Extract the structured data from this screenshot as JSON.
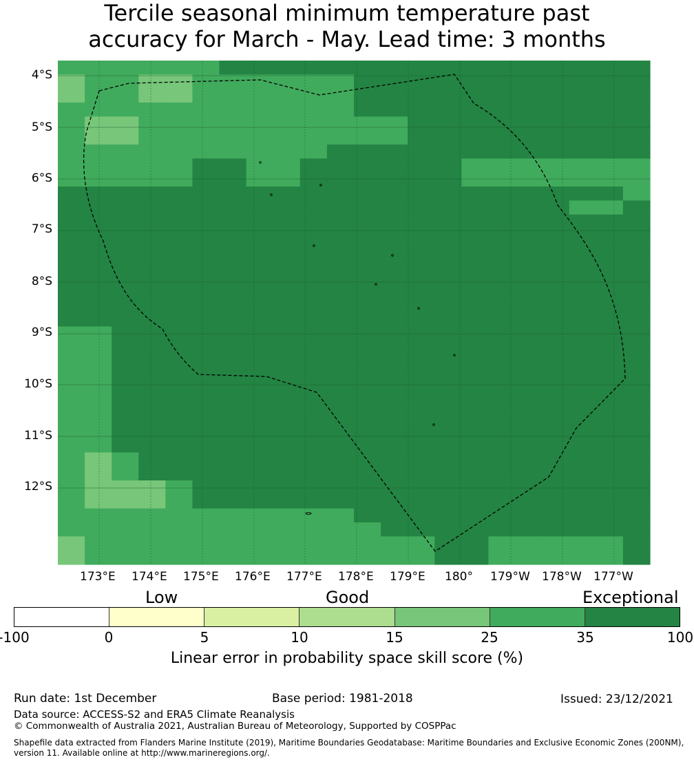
{
  "title": {
    "line1": "Tercile seasonal minimum temperature past",
    "line2": "accuracy for March - May. Lead time: 3 months"
  },
  "map": {
    "lat_labels": [
      "4°S",
      "5°S",
      "6°S",
      "7°S",
      "8°S",
      "9°S",
      "10°S",
      "11°S",
      "12°S"
    ],
    "lon_labels": [
      "173°E",
      "174°E",
      "175°E",
      "176°E",
      "177°E",
      "178°E",
      "179°E",
      "180°",
      "179°W",
      "178°W",
      "177°W"
    ],
    "colors": {
      "c15_25": "#78c679",
      "c25_35": "#41ab5d",
      "c35_100": "#238443",
      "grid": "#1a5c2f",
      "eez": "#000000"
    },
    "grid": [
      "CCCCCCDDDDDDDDDDDDDDDD",
      "BCCBBCCCCCCDDDDDDDDDDD",
      "BCCBBCCCCCCDDDDDDDDDDD",
      "CCCCCCCCCCCDDDDDDDDDDD",
      "CBBCCCCCCCCCCDDDDDDDDD",
      "CBBCCCCCCCCCCDDDDDDDDD",
      "CCCCCCCCCCDDDDDDDDDDDD",
      "CCCCCDDCCDDDDDDCCCCCCC",
      "CCCCCDDCCDDDDDDCCCCCCC",
      "DDDDDDDDDDDDDDDDDDDDDC",
      "DDDDDDDDDDDDDDDDDDDCCD",
      "DDDDDDDDDDDDDDDDDDDDDD",
      "DDDDDDDDDDDDDDDDDDDDDD",
      "DDDDDDDDDDDDDDDDDDDDDD",
      "DDDDDDDDDDDDDDDDDDDDDD",
      "DDDDDDDDDDDDDDDDDDDDDD",
      "DDDDDDDDDDDDDDDDDDDDDD",
      "DDDDDDDDDDDDDDDDDDDDDD",
      "DDDDDDDDDDDDDDDDDDDDDD",
      "CCDDDDDDDDDDDDDDDDDDDD",
      "CCDDDDDDDDDDDDDDDDDDDD",
      "CCDDDDDDDDDDDDDDDDDDDD",
      "CCDDDDDDDDDDDDDDDDDDDD",
      "CCDDDDDDDDDDDDDDDDDDDD",
      "CCDDDDDDDDDDDDDDDDDDDD",
      "CCDDDDDDDDDDDDDDDDDDDD",
      "CCDDDDDDDDDDDDDDDDDDDD",
      "CCDDDDDDDDDDDDDDDDDDDD",
      "CBCDDDDDDDDDDDDDDDDDDD",
      "CBCDDDDDDDDDDDDDDDDDDD",
      "CBBBCDDDDDDDDDDDDDDDDD",
      "CBBBCDDDDDDDDDDDDDDDDD",
      "CCCCCCCCCCCDDDDDDDDDDD",
      "CCCCCCCCCCCCDDDDDDDDDD",
      "BCCCCCCCCCCCCCDDCCCCCD",
      "BCCCCCCCCCCCCCDDCCCCCD"
    ]
  },
  "colorbar": {
    "categories": [
      "Low",
      "Good",
      "Exceptional"
    ],
    "ticks": [
      "-100",
      "0",
      "5",
      "10",
      "15",
      "25",
      "35",
      "100"
    ],
    "colors": [
      "#ffffff",
      "#ffffcc",
      "#d9f0a3",
      "#addd8e",
      "#78c679",
      "#41ab5d",
      "#238443"
    ],
    "title": "Linear error in probability space skill score (%)"
  },
  "footer": {
    "run_date": "Run date: 1st December",
    "base_period": "Base period: 1981-2018",
    "issued": "Issued: 23/12/2021",
    "data_source": "Data source: ACCESS-S2 and ERA5 Climate Reanalysis",
    "copyright": "© Commonwealth of Australia 2021, Australian Bureau of Meteorology, Supported by COSPPac",
    "shapefile": "Shapefile data extracted from Flanders Marine Institute (2019), Maritime Boundaries Geodatabase: Maritime Boundaries and Exclusive Economic Zones (200NM), version 11. Available online at http://www.marineregions.org/."
  }
}
